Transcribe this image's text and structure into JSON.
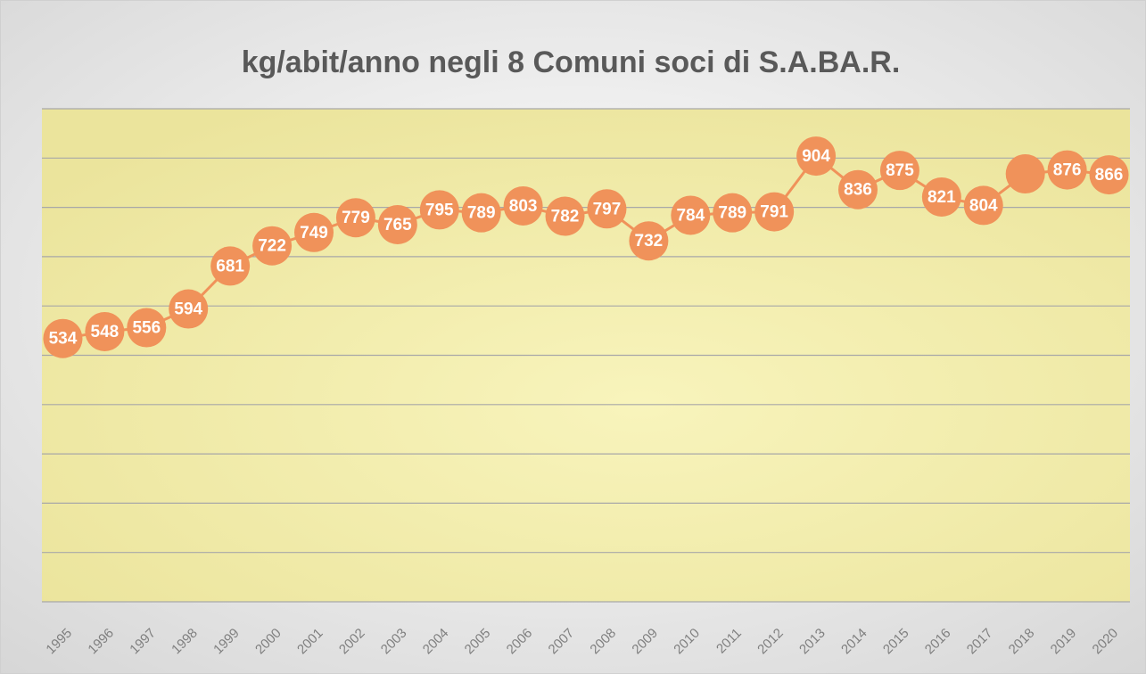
{
  "chart_data": {
    "type": "line",
    "title": "kg/abit/anno negli 8 Comuni soci di S.A.BA.R.",
    "categories": [
      "1995",
      "1996",
      "1997",
      "1998",
      "1999",
      "2000",
      "2001",
      "2002",
      "2003",
      "2004",
      "2005",
      "2006",
      "2007",
      "2008",
      "2009",
      "2010",
      "2011",
      "2012",
      "2013",
      "2014",
      "2015",
      "2016",
      "2017",
      "2018",
      "2019",
      "2020"
    ],
    "series": [
      {
        "color": "#f0925a",
        "values": [
          534,
          548,
          556,
          594,
          681,
          722,
          749,
          779,
          765,
          795,
          789,
          803,
          782,
          797,
          732,
          784,
          789,
          791,
          904,
          836,
          875,
          821,
          804,
          868,
          876,
          866
        ],
        "value_labels": [
          "534",
          "548",
          "556",
          "594",
          "681",
          "722",
          "749",
          "779",
          "765",
          "795",
          "789",
          "803",
          "782",
          "797",
          "732",
          "784",
          "789",
          "791",
          "904",
          "836",
          "875",
          "821",
          "804",
          null,
          "876",
          "866"
        ]
      }
    ],
    "ylim": [
      0,
      1000
    ],
    "yticks": [
      0,
      100,
      200,
      300,
      400,
      500,
      600,
      700,
      800,
      900,
      1000
    ],
    "grid": true
  }
}
